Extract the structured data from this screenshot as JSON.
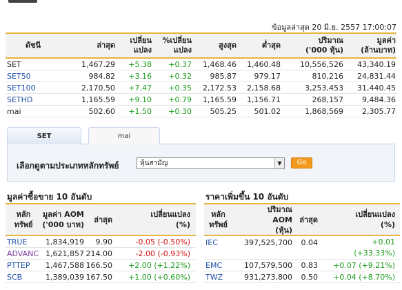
{
  "header": {
    "updated": "ข้อมูลล่าสุด 20 มิ.ย. 2557 17:00:07"
  },
  "index_table": {
    "headers": [
      "ดัชนี",
      "ล่าสุด",
      "เปลี่ยน\nแปลง",
      "%เปลี่ยน\nแปลง",
      "สูงสุด",
      "ต่ำสุด",
      "ปริมาณ\n('000 หุ้น)",
      "มูลค่า\n(ล้านบาท)"
    ],
    "rows": [
      {
        "name": "SET",
        "last": "1,467.29",
        "chg": "+5.38",
        "pct": "+0.37",
        "high": "1,468.46",
        "low": "1,460.48",
        "vol": "10,556,526",
        "val": "43,340.19"
      },
      {
        "name": "SET50",
        "last": "984.82",
        "chg": "+3.16",
        "pct": "+0.32",
        "high": "985.87",
        "low": "979.17",
        "vol": "810,216",
        "val": "24,831.44"
      },
      {
        "name": "SET100",
        "last": "2,170.50",
        "chg": "+7.47",
        "pct": "+0.35",
        "high": "2,172.53",
        "low": "2,158.68",
        "vol": "3,253,453",
        "val": "31,440.45"
      },
      {
        "name": "SETHD",
        "last": "1,165.59",
        "chg": "+9.10",
        "pct": "+0.79",
        "high": "1,165.59",
        "low": "1,156.71",
        "vol": "268,157",
        "val": "9,484.36"
      },
      {
        "name": "mai",
        "last": "502.60",
        "chg": "+1.50",
        "pct": "+0.30",
        "high": "505.25",
        "low": "501.02",
        "vol": "1,868,569",
        "val": "2,305.77"
      }
    ]
  },
  "tabs": {
    "set": "SET",
    "mai": "mai"
  },
  "filter": {
    "label": "เลือกดูตามประเภทหลักทรัพย์",
    "selected": "หุ้นสามัญ",
    "go": "Go"
  },
  "top_value": {
    "title": "มูลค่าซื้อขาย 10 อันดับ",
    "headers": [
      "หลัก\nทรัพย์",
      "มูลค่า AOM\n('000 บาท)",
      "ล่าสุด",
      "เปลี่ยนแปลง\n(%)"
    ],
    "rows": [
      {
        "sym": "TRUE",
        "aom": "1,834,919",
        "last": "9.90",
        "chg": "-0.05 (-0.50%)"
      },
      {
        "sym": "ADVANC",
        "aom": "1,621,857",
        "last": "214.00",
        "chg": "-2.00 (-0.93%)"
      },
      {
        "sym": "PTTEP",
        "aom": "1,467,588",
        "last": "166.50",
        "chg": "+2.00 (+1.22%)"
      },
      {
        "sym": "SCB",
        "aom": "1,389,039",
        "last": "167.50",
        "chg": "+1.00 (+0.60%)"
      }
    ]
  },
  "top_gainers": {
    "title": "ราคาเพิ่มขึ้น 10 อันดับ",
    "headers": [
      "หลัก\nทรัพย์",
      "ปริมาณ\nAOM\n(หุ้น)",
      "ล่าสุด",
      "เปลี่ยนแปลง\n(%)"
    ],
    "rows": [
      {
        "sym": "IEC",
        "vol": "397,525,700",
        "last": "0.04",
        "chg": "+0.01",
        "chg2": "(+33.33%)"
      },
      {
        "sym": "EMC",
        "vol": "107,579,500",
        "last": "0.83",
        "chg": "+0.07 (+9.21%)",
        "chg2": ""
      },
      {
        "sym": "TWZ",
        "vol": "931,273,800",
        "last": "0.50",
        "chg": "+0.04 (+8.70%)",
        "chg2": ""
      }
    ]
  },
  "colors": {
    "up": "#1a9a1a",
    "down": "#d01010",
    "link": "#1f4fa8",
    "accent": "#e8b33f",
    "go": "#f39a1e"
  }
}
